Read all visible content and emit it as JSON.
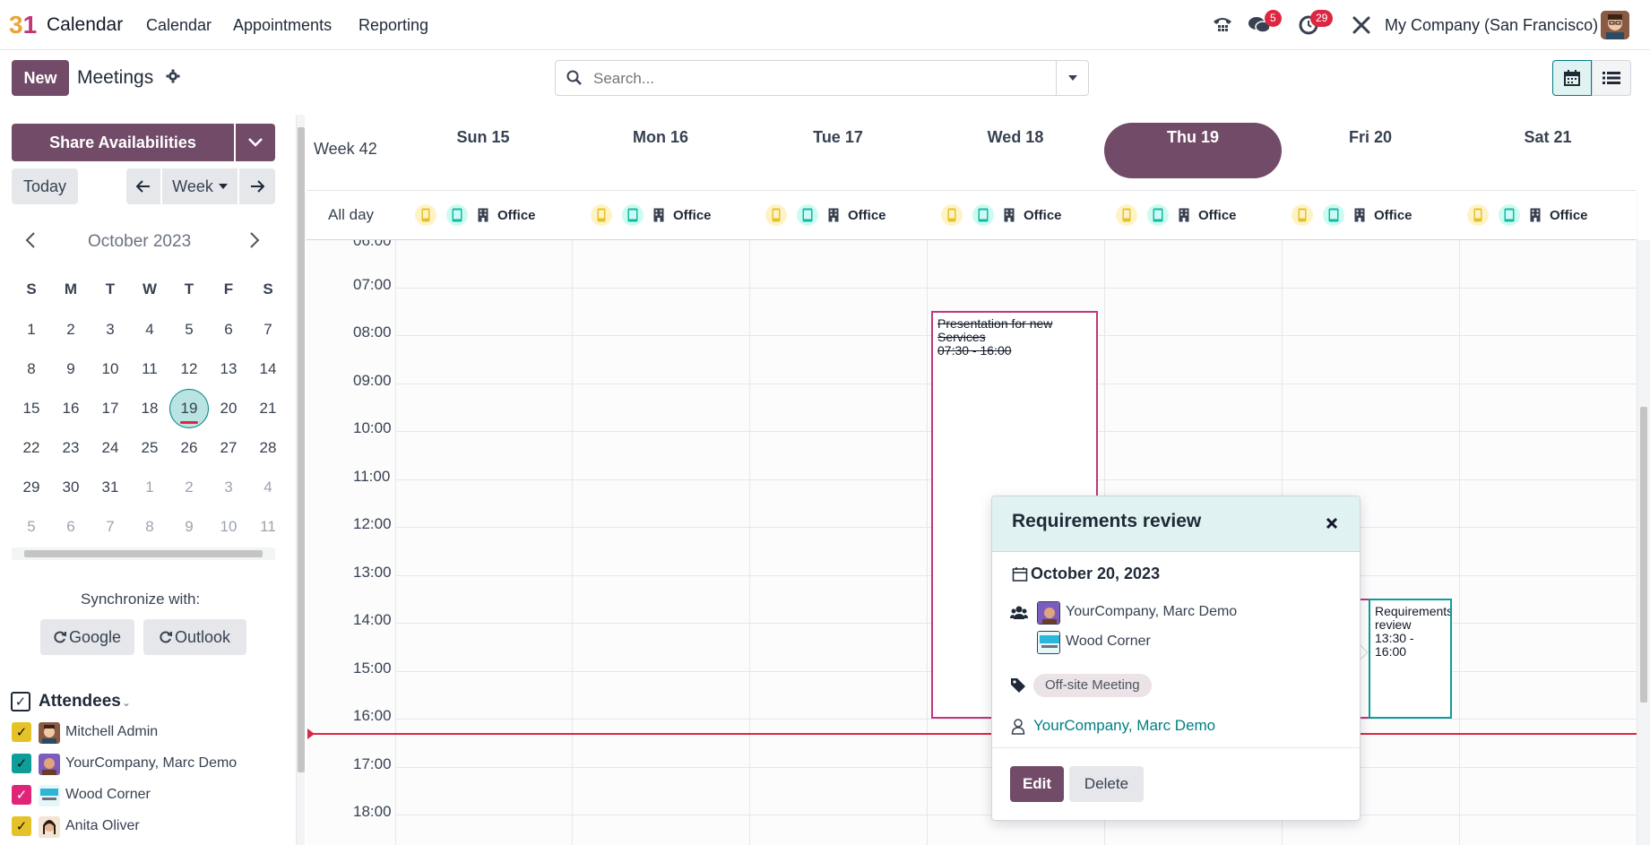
{
  "topbar": {
    "logo_text_a": "3",
    "logo_text_b": "1",
    "app_name": "Calendar",
    "menu": [
      "Calendar",
      "Appointments",
      "Reporting"
    ],
    "messages_count": "5",
    "activities_count": "29",
    "company": "My Company (San Francisco)"
  },
  "controls": {
    "new_label": "New",
    "page_title": "Meetings",
    "search_placeholder": "Search..."
  },
  "sidebar": {
    "share_label": "Share Availabilities",
    "today_label": "Today",
    "range_label": "Week",
    "month_title": "October 2023",
    "weekday_headers": [
      "S",
      "M",
      "T",
      "W",
      "T",
      "F",
      "S"
    ],
    "weeks": [
      [
        "1",
        "2",
        "3",
        "4",
        "5",
        "6",
        "7"
      ],
      [
        "8",
        "9",
        "10",
        "11",
        "12",
        "13",
        "14"
      ],
      [
        "15",
        "16",
        "17",
        "18",
        "19",
        "20",
        "21"
      ],
      [
        "22",
        "23",
        "24",
        "25",
        "26",
        "27",
        "28"
      ],
      [
        "29",
        "30",
        "31",
        "1",
        "2",
        "3",
        "4"
      ],
      [
        "5",
        "6",
        "7",
        "8",
        "9",
        "10",
        "11"
      ]
    ],
    "today_day": "19",
    "sync_label": "Synchronize with:",
    "google_label": "Google",
    "outlook_label": "Outlook",
    "attendees_title": "Attendees",
    "attendees": [
      {
        "name": "Mitchell Admin",
        "color": "#e6c229"
      },
      {
        "name": "YourCompany, Marc Demo",
        "color": "#0f9d9a"
      },
      {
        "name": "Wood Corner",
        "color": "#e0247a"
      },
      {
        "name": "Anita Oliver",
        "color": "#e6c229"
      }
    ]
  },
  "calendar": {
    "week_label": "Week 42",
    "days": [
      "Sun 15",
      "Mon 16",
      "Tue 17",
      "Wed 18",
      "Thu 19",
      "Fri 20",
      "Sat 21"
    ],
    "active_day": "Thu 19",
    "allday_label": "All day",
    "allday_office_label": "Office",
    "hours": [
      "06:00",
      "07:00",
      "08:00",
      "09:00",
      "10:00",
      "11:00",
      "12:00",
      "13:00",
      "14:00",
      "15:00",
      "16:00",
      "17:00",
      "18:00"
    ],
    "events": {
      "presentation": {
        "title": "Presentation for new Services",
        "time": "07:30 - 16:00"
      },
      "requirements": {
        "title": "Requirements review",
        "time": "13:30 - 16:00"
      },
      "partial_a": "nt",
      "partial_b": "0"
    }
  },
  "popover": {
    "title": "Requirements review",
    "date": "October 20, 2023",
    "attendees": [
      "YourCompany, Marc Demo",
      "Wood Corner"
    ],
    "tag": "Off-site Meeting",
    "organizer": "YourCompany, Marc Demo",
    "edit_label": "Edit",
    "delete_label": "Delete"
  },
  "colors": {
    "primary": "#714b67",
    "teal": "#017e84",
    "now_line": "#dc2743"
  }
}
